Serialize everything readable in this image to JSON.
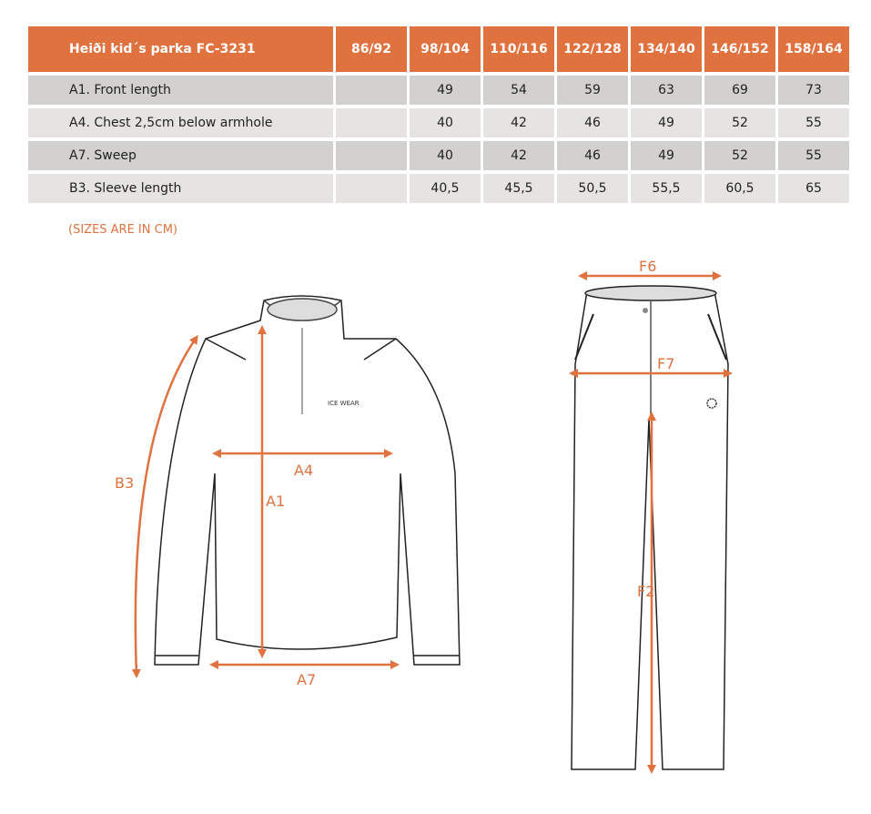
{
  "table": {
    "title": "Heiði kid´s parka FC-3231",
    "sizes": [
      "86/92",
      "98/104",
      "110/116",
      "122/128",
      "134/140",
      "146/152",
      "158/164"
    ],
    "rows": [
      {
        "label": "A1. Front length",
        "values": [
          "",
          "49",
          "54",
          "59",
          "63",
          "69",
          "73"
        ]
      },
      {
        "label": "A4. Chest 2,5cm below armhole",
        "values": [
          "",
          "40",
          "42",
          "46",
          "49",
          "52",
          "55"
        ]
      },
      {
        "label": "A7. Sweep",
        "values": [
          "",
          "40",
          "42",
          "46",
          "49",
          "52",
          "55"
        ]
      },
      {
        "label": "B3. Sleeve length",
        "values": [
          "",
          "40,5",
          "45,5",
          "50,5",
          "55,5",
          "60,5",
          "65"
        ]
      }
    ]
  },
  "note": "(SIZES ARE IN CM)",
  "diagram": {
    "accent_color": "#e07240",
    "jacket_labels": {
      "a1": "A1",
      "a4": "A4",
      "a7": "A7",
      "b3": "B3"
    },
    "jacket_logo": "ICE WEAR",
    "pants_labels": {
      "f6": "F6",
      "f7": "F7",
      "f2": "F2"
    }
  }
}
